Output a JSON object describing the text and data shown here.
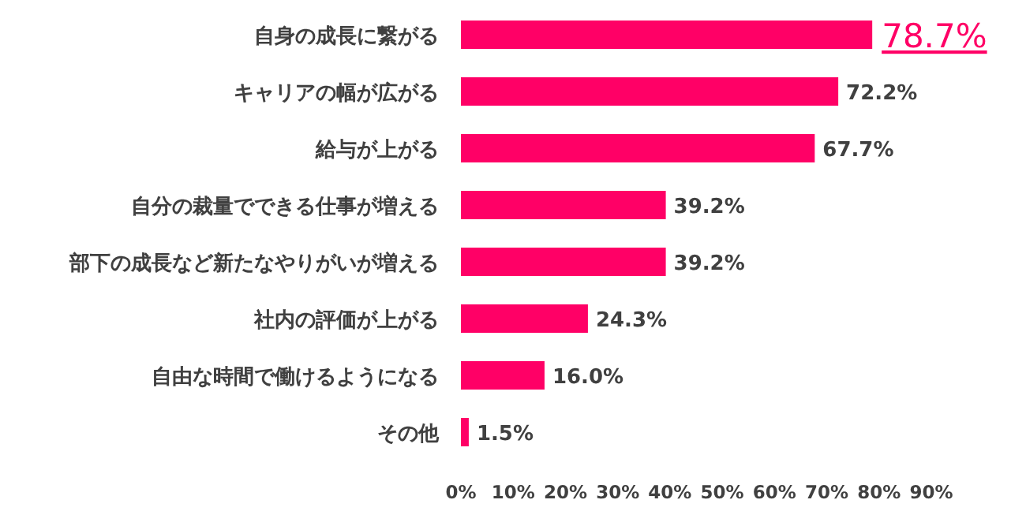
{
  "chart_data": {
    "type": "bar",
    "orientation": "horizontal",
    "categories": [
      "自身の成長に繋がる",
      "キャリアの幅が広がる",
      "給与が上がる",
      "自分の裁量でできる仕事が増える",
      "部下の成長など新たなやりがいが増える",
      "社内の評価が上がる",
      "自由な時間で働けるようになる",
      "その他"
    ],
    "values": [
      78.7,
      72.2,
      67.7,
      39.2,
      39.2,
      24.3,
      16.0,
      1.5
    ],
    "color": "#ff0066",
    "value_labels": [
      "78.7%",
      "72.2%",
      "67.7%",
      "39.2%",
      "39.2%",
      "24.3%",
      "16.0%",
      "1.5%"
    ],
    "xlim": [
      0,
      90
    ],
    "xticks": [
      {
        "value": 0,
        "label": "0%"
      },
      {
        "value": 10,
        "label": "10%"
      },
      {
        "value": 20,
        "label": "20%"
      },
      {
        "value": 30,
        "label": "30%"
      },
      {
        "value": 40,
        "label": "40%"
      },
      {
        "value": 50,
        "label": "50%"
      },
      {
        "value": 60,
        "label": "60%"
      },
      {
        "value": 70,
        "label": "70%"
      },
      {
        "value": 80,
        "label": "80%"
      },
      {
        "value": 90,
        "label": "90%"
      }
    ],
    "grid": false
  }
}
